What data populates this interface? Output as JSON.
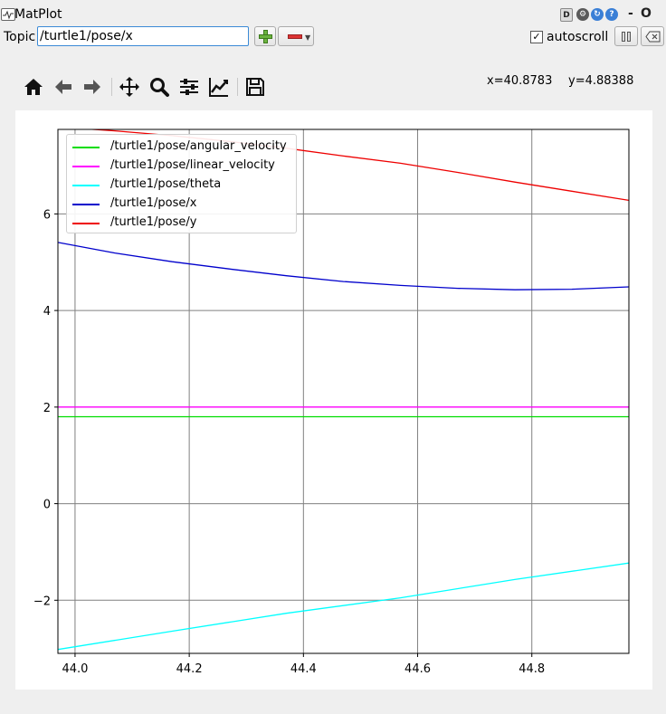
{
  "window": {
    "title": "MatPlot",
    "buttons": {
      "d": "D",
      "minimize": "-",
      "close": "O"
    }
  },
  "topic": {
    "label": "Topic",
    "value": "/turtle1/pose/x"
  },
  "autoscroll": {
    "label": "autoscroll",
    "checked": true,
    "checkmark": "✓"
  },
  "toolbar": {
    "icons": [
      "home-icon",
      "back-icon",
      "forward-icon",
      "pan-icon",
      "zoom-icon",
      "configure-subplots-icon",
      "edit-axis-icon",
      "save-icon"
    ]
  },
  "coordinates": {
    "x": "x=40.8783",
    "y": "y=4.88388"
  },
  "chart_data": {
    "type": "line",
    "xlim": [
      43.97,
      44.97
    ],
    "ylim": [
      -3.1,
      7.75
    ],
    "xticks": [
      44.0,
      44.2,
      44.4,
      44.6,
      44.8
    ],
    "xtick_labels": [
      "44.0",
      "44.2",
      "44.4",
      "44.6",
      "44.8"
    ],
    "yticks": [
      -2,
      0,
      2,
      4,
      6
    ],
    "ytick_labels": [
      "−2",
      "0",
      "2",
      "4",
      "6"
    ],
    "grid": true,
    "legend_position": "top-left",
    "series": [
      {
        "name": "/turtle1/pose/angular_velocity",
        "color": "#00dd00",
        "x": [
          43.97,
          44.97
        ],
        "y": [
          1.8,
          1.8
        ]
      },
      {
        "name": "/turtle1/pose/linear_velocity",
        "color": "#ff00ff",
        "x": [
          43.97,
          44.97
        ],
        "y": [
          2.0,
          2.0
        ]
      },
      {
        "name": "/turtle1/pose/theta",
        "color": "#00ffff",
        "x": [
          43.97,
          44.17,
          44.37,
          44.57,
          44.77,
          44.97
        ],
        "y": [
          -3.02,
          -2.64,
          -2.27,
          -1.95,
          -1.57,
          -1.23
        ]
      },
      {
        "name": "/turtle1/pose/x",
        "color": "#0000cc",
        "x": [
          43.97,
          44.07,
          44.17,
          44.27,
          44.37,
          44.47,
          44.57,
          44.67,
          44.77,
          44.87,
          44.97
        ],
        "y": [
          5.41,
          5.19,
          5.01,
          4.86,
          4.72,
          4.6,
          4.52,
          4.46,
          4.43,
          4.44,
          4.49
        ]
      },
      {
        "name": "/turtle1/pose/y",
        "color": "#ee0000",
        "x": [
          43.97,
          44.07,
          44.17,
          44.27,
          44.37,
          44.47,
          44.57,
          44.67,
          44.77,
          44.87,
          44.97
        ],
        "y": [
          7.8,
          7.72,
          7.62,
          7.5,
          7.36,
          7.2,
          7.05,
          6.86,
          6.66,
          6.47,
          6.28
        ]
      }
    ]
  }
}
